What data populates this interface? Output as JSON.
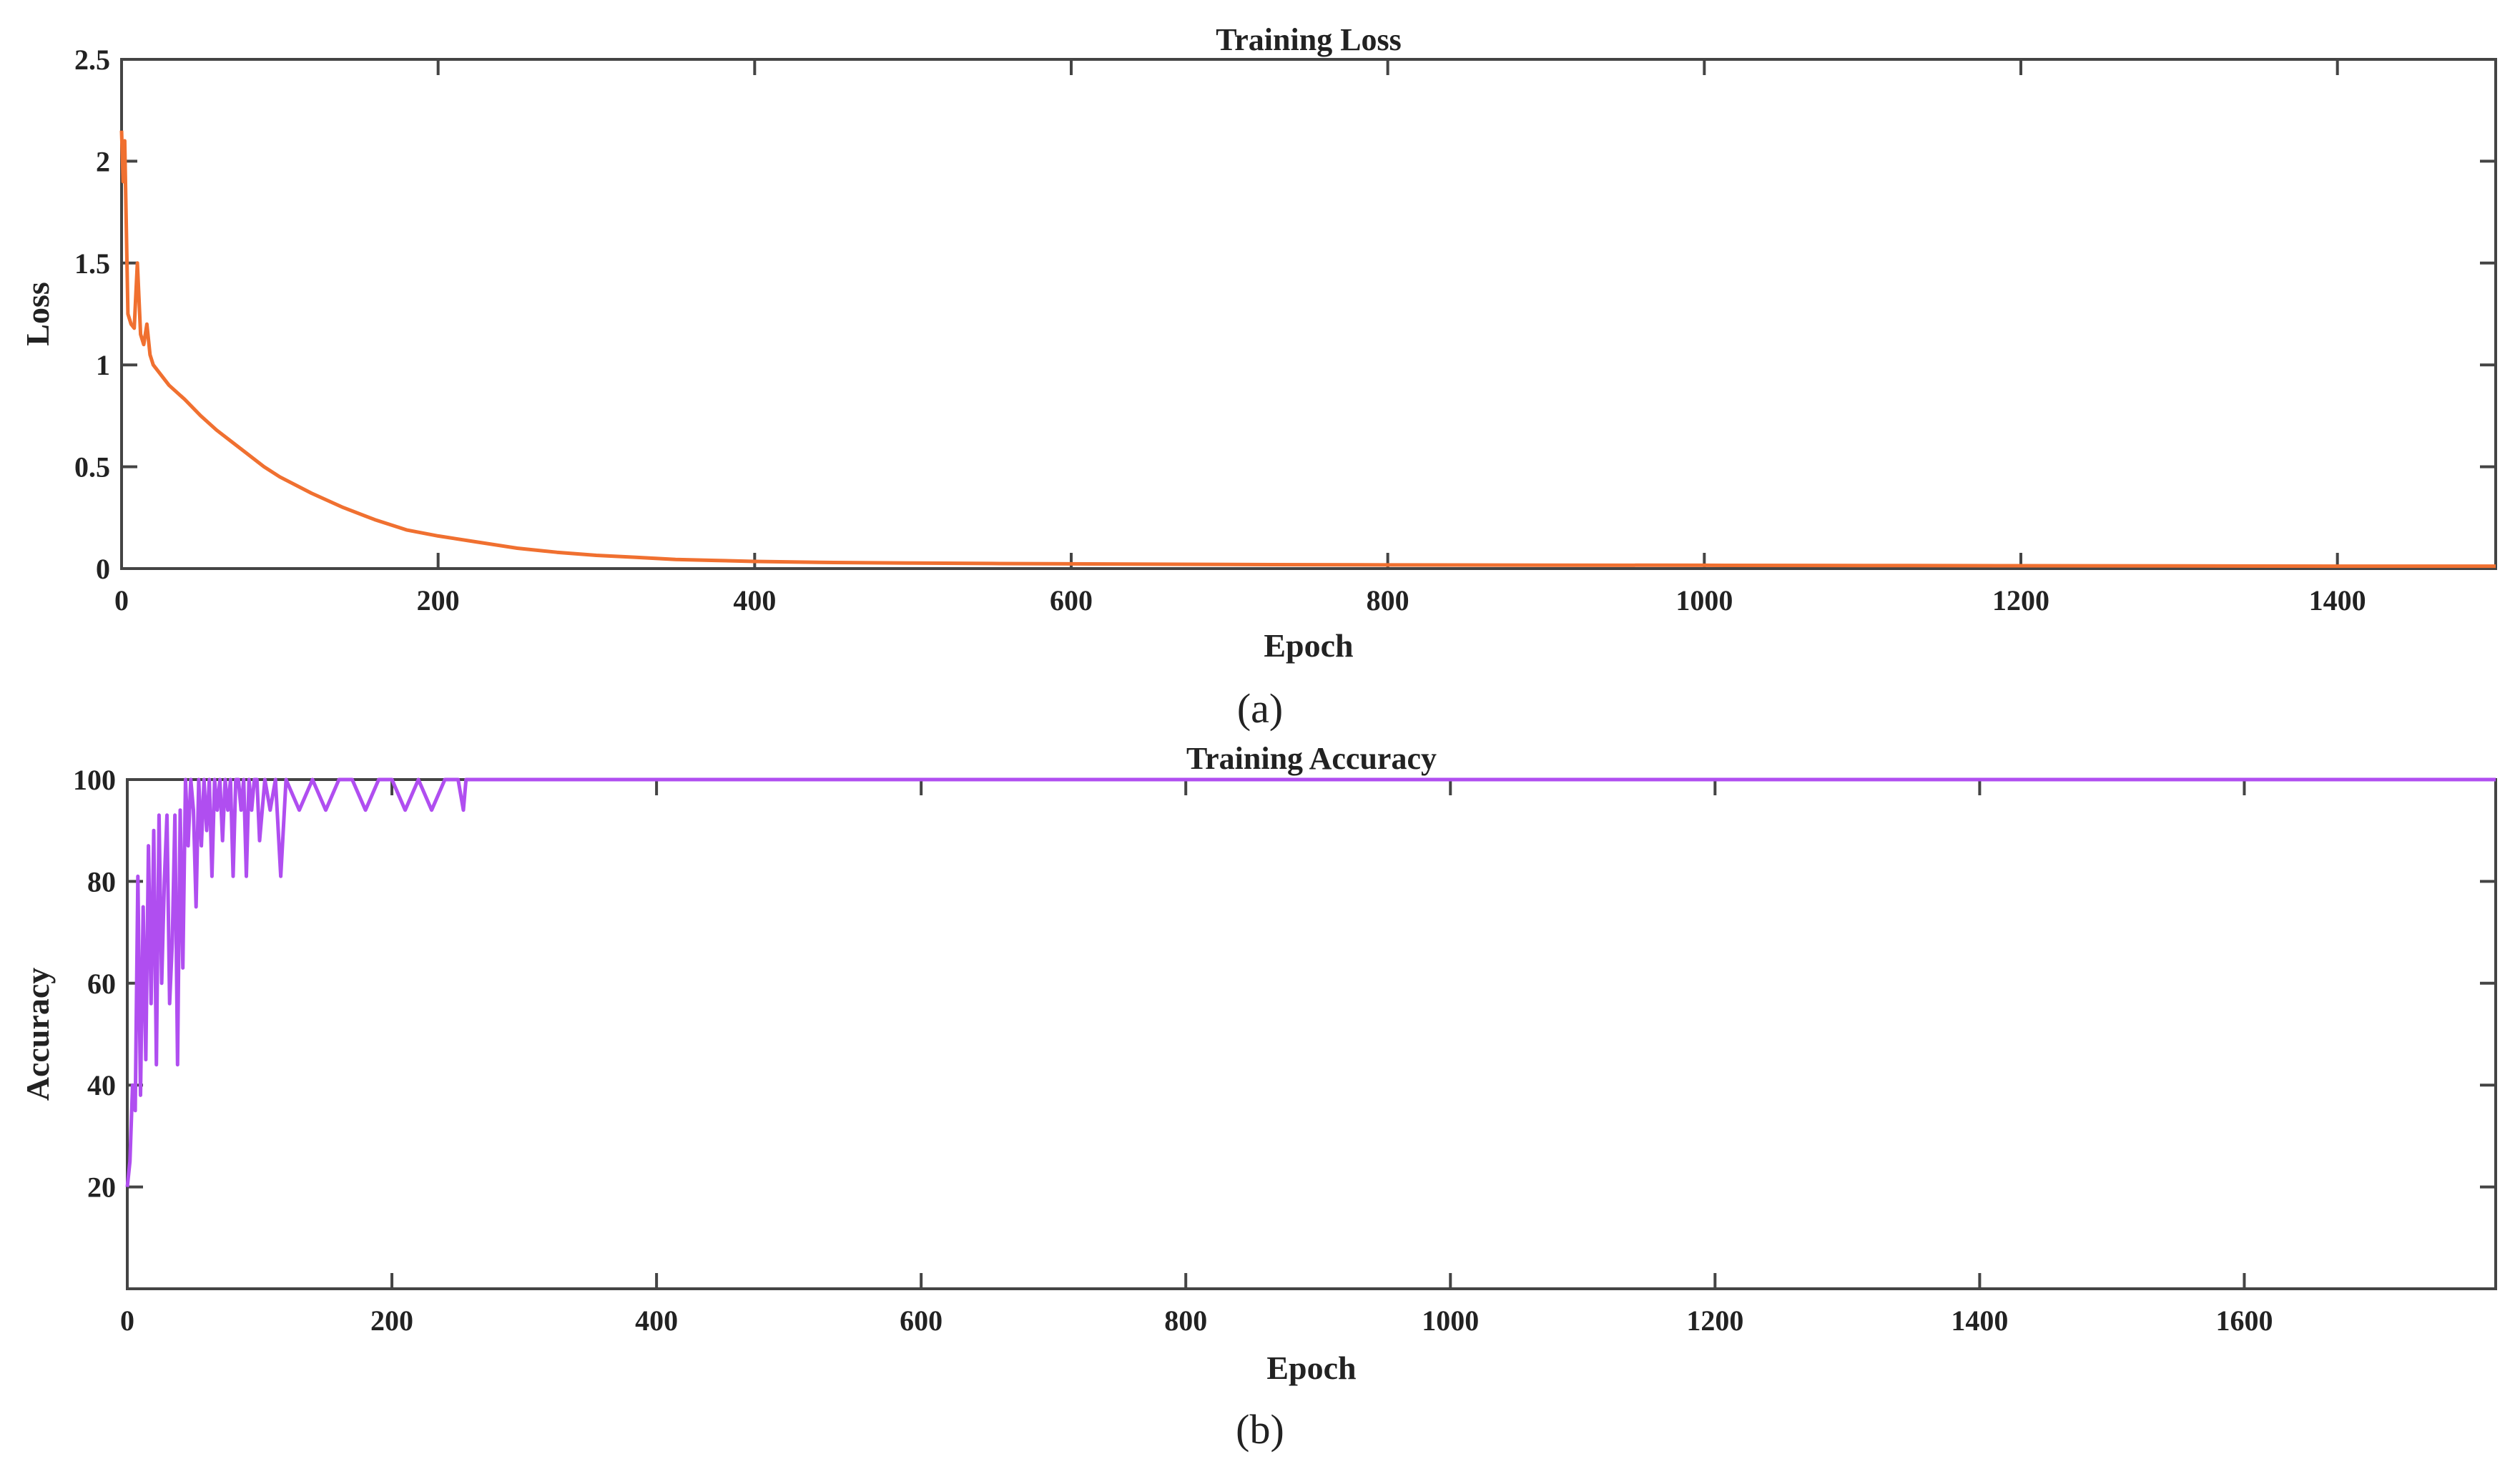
{
  "chart_data": [
    {
      "type": "line",
      "title": "Training Loss",
      "xlabel": "Epoch",
      "ylabel": "Loss",
      "caption": "(a)",
      "xlim": [
        0,
        1500
      ],
      "ylim": [
        0,
        2.5
      ],
      "xticks": [
        0,
        200,
        400,
        600,
        800,
        1000,
        1200,
        1400
      ],
      "yticks": [
        0,
        0.5,
        1,
        1.5,
        2,
        2.5
      ],
      "ytick_labels": [
        "0",
        "0.5",
        "1",
        "1.5",
        "2",
        "2.5"
      ],
      "grid": false,
      "series": [
        {
          "color": "#f07030",
          "x": [
            0,
            1,
            2,
            4,
            6,
            8,
            10,
            12,
            14,
            16,
            18,
            20,
            30,
            40,
            50,
            60,
            70,
            80,
            90,
            100,
            120,
            140,
            160,
            180,
            200,
            225,
            250,
            275,
            300,
            325,
            350,
            375,
            400,
            450,
            500,
            550,
            600,
            700,
            800,
            900,
            1000,
            1100,
            1200,
            1300,
            1400,
            1500
          ],
          "y": [
            2.15,
            1.9,
            2.1,
            1.25,
            1.2,
            1.18,
            1.5,
            1.15,
            1.1,
            1.2,
            1.05,
            1.0,
            0.9,
            0.83,
            0.75,
            0.68,
            0.62,
            0.56,
            0.5,
            0.45,
            0.37,
            0.3,
            0.24,
            0.19,
            0.16,
            0.13,
            0.1,
            0.08,
            0.065,
            0.055,
            0.045,
            0.04,
            0.035,
            0.03,
            0.027,
            0.025,
            0.023,
            0.02,
            0.018,
            0.017,
            0.016,
            0.015,
            0.014,
            0.013,
            0.012,
            0.012
          ]
        }
      ]
    },
    {
      "type": "line",
      "title": "Training Accuracy",
      "xlabel": "Epoch",
      "ylabel": "Accuracy",
      "caption": "(b)",
      "xlim": [
        0,
        1790
      ],
      "ylim": [
        0,
        100
      ],
      "xticks": [
        0,
        200,
        400,
        600,
        800,
        1000,
        1200,
        1400,
        1600
      ],
      "yticks": [
        20,
        40,
        60,
        80,
        100
      ],
      "ytick_labels": [
        "20",
        "40",
        "60",
        "80",
        "100"
      ],
      "grid": false,
      "series": [
        {
          "color": "#b04ef0",
          "x": [
            0,
            2,
            4,
            6,
            8,
            10,
            12,
            14,
            16,
            18,
            20,
            22,
            24,
            26,
            28,
            30,
            32,
            34,
            36,
            38,
            40,
            42,
            44,
            46,
            48,
            50,
            52,
            54,
            56,
            58,
            60,
            62,
            64,
            66,
            68,
            70,
            72,
            74,
            76,
            78,
            80,
            82,
            84,
            86,
            88,
            90,
            92,
            94,
            96,
            98,
            100,
            104,
            108,
            112,
            116,
            120,
            130,
            140,
            150,
            160,
            170,
            180,
            190,
            200,
            210,
            220,
            230,
            240,
            250,
            254,
            256,
            260,
            300,
            400,
            600,
            800,
            1000,
            1200,
            1400,
            1600,
            1790
          ],
          "y": [
            20,
            25,
            40,
            35,
            81,
            38,
            75,
            45,
            87,
            56,
            90,
            44,
            93,
            60,
            80,
            93,
            56,
            68,
            93,
            44,
            94,
            63,
            100,
            87,
            100,
            94,
            75,
            100,
            87,
            100,
            90,
            100,
            81,
            100,
            94,
            100,
            88,
            100,
            94,
            100,
            81,
            100,
            100,
            94,
            100,
            81,
            100,
            94,
            100,
            100,
            88,
            100,
            94,
            100,
            81,
            100,
            94,
            100,
            94,
            100,
            100,
            94,
            100,
            100,
            94,
            100,
            94,
            100,
            100,
            94,
            100,
            100,
            100,
            100,
            100,
            100,
            100,
            100,
            100,
            100,
            100
          ]
        }
      ]
    }
  ]
}
